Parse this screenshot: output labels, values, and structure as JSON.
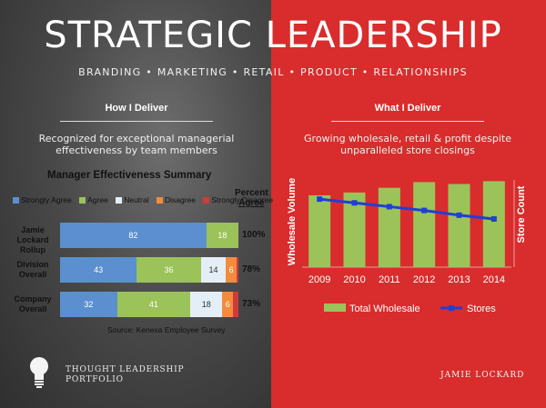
{
  "header": {
    "title": "STRATEGIC LEADERSHIP",
    "subtitle": "BRANDING • MARKETING • RETAIL • PRODUCT • RELATIONSHIPS"
  },
  "left": {
    "section_title": "How I Deliver",
    "description": "Recognized for exceptional managerial effectiveness by team members",
    "footer": {
      "line1": "THOUGHT LEADERSHIP",
      "line2": "PORTFOLIO"
    }
  },
  "right": {
    "section_title": "What I Deliver",
    "description": "Growing wholesale, retail & profit despite unparalleled store closings",
    "footer": "JAMIE LOCKARD"
  },
  "chart_data": [
    {
      "type": "bar",
      "orientation": "horizontal-stacked",
      "title": "Manager Effectiveness Summary",
      "percent_header_line1": "Percent",
      "percent_header_line2": "Agree",
      "source": "Source: Kenexa Employee Survey",
      "legend": [
        {
          "name": "Strongly Agree",
          "color": "#5b8fd0"
        },
        {
          "name": "Agree",
          "color": "#9bc35a"
        },
        {
          "name": "Neutral",
          "color": "#e4eef6"
        },
        {
          "name": "Disagree",
          "color": "#f28c3c"
        },
        {
          "name": "Strongly Disagree",
          "color": "#cf3a3a"
        }
      ],
      "rows": [
        {
          "label_line1": "Jamie Lockard",
          "label_line2": "Rollup",
          "values": [
            82,
            18,
            0,
            0,
            0
          ],
          "labels": [
            "82",
            "18",
            "",
            "",
            ""
          ],
          "percent_agree": "100%"
        },
        {
          "label_line1": "Division",
          "label_line2": "Overall",
          "values": [
            43,
            36,
            14,
            6,
            1
          ],
          "labels": [
            "43",
            "36",
            "14",
            "6",
            ""
          ],
          "percent_agree": "78%"
        },
        {
          "label_line1": "Company",
          "label_line2": "Overall",
          "values": [
            32,
            41,
            18,
            6,
            3
          ],
          "labels": [
            "32",
            "41",
            "18",
            "6",
            ""
          ],
          "percent_agree": "73%"
        }
      ]
    },
    {
      "type": "bar",
      "combo": "bar+line",
      "categories": [
        "2009",
        "2010",
        "2011",
        "2012",
        "2013",
        "2014"
      ],
      "series": [
        {
          "name": "Total Wholesale",
          "kind": "bar",
          "color": "#9bc35a",
          "values": [
            76,
            79,
            84,
            90,
            88,
            91
          ]
        },
        {
          "name": "Stores",
          "kind": "line",
          "color": "#1f3fd6",
          "values": [
            72,
            68,
            64,
            60,
            55,
            51
          ]
        }
      ],
      "ylabel_left": "Wholesale Volume",
      "ylabel_right": "Store Count",
      "ylim": [
        0,
        100
      ],
      "legend_position": "bottom"
    }
  ]
}
